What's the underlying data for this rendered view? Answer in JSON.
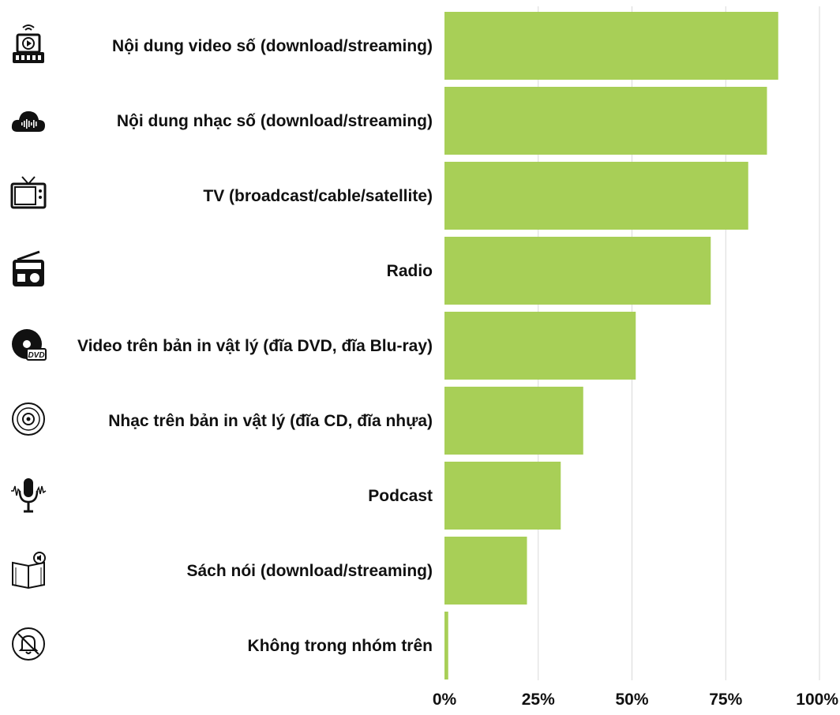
{
  "chart_data": {
    "type": "bar",
    "orientation": "horizontal",
    "categories": [
      "Nội dung video số (download/streaming)",
      "Nội dung nhạc số (download/streaming)",
      "TV (broadcast/cable/satellite)",
      "Radio",
      "Video trên bản in vật lý (đĩa DVD, đĩa Blu-ray)",
      "Nhạc trên bản in vật lý (đĩa CD, đĩa nhựa)",
      "Podcast",
      "Sách nói (download/streaming)",
      "Không trong nhóm trên"
    ],
    "values": [
      89,
      86,
      81,
      71,
      51,
      37,
      31,
      22,
      1
    ],
    "icons": [
      "video-streaming-icon",
      "music-cloud-icon",
      "tv-icon",
      "radio-icon",
      "dvd-icon",
      "cd-icon",
      "podcast-microphone-icon",
      "audiobook-icon",
      "no-notification-icon"
    ],
    "xlim": [
      0,
      100
    ],
    "xticks": [
      0,
      25,
      50,
      75,
      100
    ],
    "xtick_labels": [
      "0%",
      "25%",
      "50%",
      "75%",
      "100%"
    ],
    "bar_color": "#a8cf57",
    "grid": true,
    "legend": "none"
  }
}
